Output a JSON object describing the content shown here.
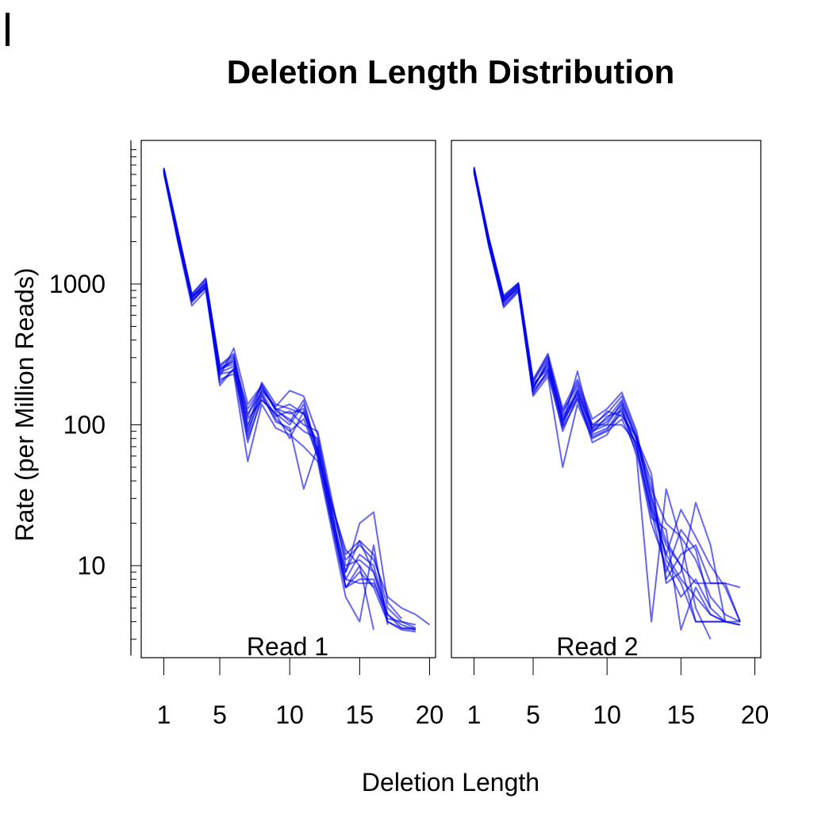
{
  "chart_data": {
    "type": "line",
    "title": "Deletion Length Distribution",
    "xlabel": "Deletion Length",
    "ylabel": "Rate (per Million Reads)",
    "y_scale": "log",
    "ylim": [
      2.3,
      9000
    ],
    "xlim": [
      0,
      20.3
    ],
    "y_ticks": [
      10,
      100,
      1000
    ],
    "y_tick_labels": [
      "10",
      "100",
      "1000"
    ],
    "x_ticks": [
      1,
      5,
      10,
      15,
      20
    ],
    "x_tick_labels": [
      "1",
      "5",
      "10",
      "15",
      "20"
    ],
    "line_color": "#0000ee",
    "grid": false,
    "legend": "none",
    "panels": [
      {
        "label": "Read 1",
        "series": [
          {
            "x": [
              1,
              2,
              3,
              4,
              5,
              6,
              7,
              8,
              9,
              10,
              11,
              12,
              13,
              14,
              15,
              16,
              17,
              18,
              19
            ],
            "values": [
              6500,
              2200,
              800,
              1000,
              240,
              290,
              85,
              180,
              130,
              120,
              130,
              70,
              22,
              8,
              12,
              10,
              4.5,
              3.8,
              3.5
            ]
          },
          {
            "x": [
              1,
              2,
              3,
              4,
              5,
              6,
              7,
              8,
              9,
              10,
              11,
              12,
              13,
              14,
              15,
              16,
              17,
              18,
              19
            ],
            "values": [
              6300,
              2100,
              760,
              950,
              230,
              240,
              110,
              150,
              120,
              100,
              140,
              65,
              25,
              7,
              9,
              7,
              4,
              3.6,
              3.5
            ]
          },
          {
            "x": [
              1,
              2,
              3,
              4,
              5,
              6,
              7,
              8,
              9,
              10,
              11,
              12,
              13,
              14,
              15,
              16,
              17,
              18,
              19
            ],
            "values": [
              6700,
              2400,
              850,
              1100,
              260,
              310,
              95,
              200,
              140,
              130,
              120,
              75,
              28,
              12,
              15,
              12,
              5,
              4,
              3.8
            ]
          },
          {
            "x": [
              1,
              2,
              3,
              4,
              5,
              6,
              7,
              8,
              9,
              10,
              11,
              12,
              13,
              14,
              15,
              16,
              17,
              18,
              19
            ],
            "values": [
              6100,
              2000,
              700,
              900,
              200,
              250,
              75,
              160,
              110,
              90,
              110,
              60,
              20,
              7,
              8,
              8,
              4,
              3.5,
              3.4
            ]
          },
          {
            "x": [
              1,
              2,
              3,
              4,
              5,
              6,
              7,
              8,
              9,
              10,
              11,
              12,
              13,
              14,
              15,
              16,
              17,
              18,
              19
            ],
            "values": [
              6400,
              2300,
              830,
              1020,
              250,
              270,
              120,
              170,
              115,
              125,
              100,
              90,
              30,
              10,
              11,
              9,
              4.2,
              4,
              3.6
            ]
          },
          {
            "x": [
              1,
              2,
              3,
              4,
              5,
              6,
              7,
              8,
              9,
              10,
              11,
              12,
              13,
              14,
              15,
              16,
              17,
              18
            ],
            "values": [
              6600,
              2250,
              780,
              980,
              220,
              350,
              140,
              190,
              125,
              110,
              90,
              80,
              24,
              9,
              20,
              24,
              5.5,
              4.2
            ]
          },
          {
            "x": [
              1,
              2,
              3,
              4,
              5,
              6,
              7,
              8,
              9,
              10,
              11,
              12,
              13,
              14,
              15,
              16,
              17
            ],
            "values": [
              6200,
              2150,
              820,
              930,
              210,
              230,
              55,
              140,
              95,
              85,
              70,
              55,
              18,
              6,
              4,
              14,
              3.8
            ]
          },
          {
            "x": [
              1,
              2,
              3,
              4,
              5,
              6,
              7,
              8,
              9,
              10,
              11,
              12,
              13,
              14,
              15,
              16,
              17,
              18,
              19,
              20
            ],
            "values": [
              6550,
              2350,
              790,
              1050,
              245,
              300,
              100,
              175,
              135,
              175,
              160,
              85,
              26,
              11,
              14,
              11,
              6,
              5,
              4.5,
              3.8
            ]
          },
          {
            "x": [
              1,
              2,
              3,
              4,
              5,
              6,
              7,
              8,
              9,
              10,
              11,
              12,
              13,
              14,
              15,
              16,
              17,
              18,
              19
            ],
            "values": [
              6450,
              2050,
              740,
              960,
              235,
              260,
              90,
              165,
              105,
              95,
              35,
              70,
              21,
              8,
              7.5,
              7.5,
              4.5,
              3.6,
              3.6
            ]
          },
          {
            "x": [
              1,
              2,
              3,
              4,
              5,
              6,
              7,
              8,
              9,
              10,
              11,
              12,
              13,
              14,
              15,
              16,
              17
            ],
            "values": [
              6350,
              2280,
              810,
              990,
              255,
              280,
              130,
              185,
              128,
              140,
              120,
              65,
              23,
              9,
              15,
              9,
              4.5
            ]
          },
          {
            "x": [
              1,
              2,
              3,
              4,
              5,
              6,
              7,
              8,
              9,
              10,
              11,
              12,
              13,
              14,
              15,
              16
            ],
            "values": [
              6250,
              2120,
              760,
              940,
              190,
              250,
              80,
              150,
              120,
              80,
              125,
              58,
              20,
              7,
              10,
              3.5
            ]
          },
          {
            "x": [
              1,
              2,
              3,
              4,
              5,
              6,
              7,
              8,
              9,
              10,
              11,
              12,
              13,
              14,
              15,
              16
            ],
            "values": [
              6600,
              2320,
              840,
              1080,
              265,
              320,
              115,
              195,
              130,
              105,
              150,
              62,
              27,
              13,
              10,
              7
            ]
          }
        ]
      },
      {
        "label": "Read 2",
        "series": [
          {
            "x": [
              1,
              2,
              3,
              4,
              5,
              6,
              7,
              8,
              9,
              10,
              11,
              12,
              13,
              14,
              15,
              16,
              17,
              18,
              19
            ],
            "values": [
              6600,
              2000,
              750,
              950,
              180,
              280,
              110,
              180,
              95,
              110,
              150,
              80,
              30,
              15,
              10,
              7.5,
              7.5,
              7.5,
              4
            ]
          },
          {
            "x": [
              1,
              2,
              3,
              4,
              5,
              6,
              7,
              8,
              9,
              10,
              11,
              12,
              13,
              14,
              15,
              16,
              17,
              18,
              19
            ],
            "values": [
              6400,
              1900,
              720,
              900,
              170,
              230,
              95,
              150,
              85,
              95,
              120,
              70,
              25,
              12,
              8,
              6,
              4.5,
              4,
              3.8
            ]
          },
          {
            "x": [
              1,
              2,
              3,
              4,
              5,
              6,
              7,
              8,
              9,
              10,
              11,
              12,
              13,
              14,
              15,
              16,
              17,
              18,
              19
            ],
            "values": [
              6800,
              2100,
              800,
              1000,
              200,
              300,
              120,
              200,
              100,
              120,
              160,
              85,
              35,
              20,
              16,
              11,
              6,
              4.5,
              4
            ]
          },
          {
            "x": [
              1,
              2,
              3,
              4,
              5,
              6,
              7,
              8,
              9,
              10,
              11,
              12,
              13,
              14,
              15,
              16,
              17,
              18
            ],
            "values": [
              6200,
              1850,
              680,
              880,
              160,
              220,
              50,
              140,
              80,
              90,
              110,
              65,
              20,
              10,
              6,
              8,
              5,
              4
            ]
          },
          {
            "x": [
              1,
              2,
              3,
              4,
              5,
              6,
              7,
              8,
              9,
              10,
              11,
              12,
              13,
              14,
              15,
              16,
              17,
              18,
              19
            ],
            "values": [
              6500,
              2050,
              780,
              970,
              190,
              260,
              100,
              240,
              90,
              100,
              100,
              75,
              40,
              8,
              12,
              14,
              7.5,
              7.5,
              7
            ]
          },
          {
            "x": [
              1,
              2,
              3,
              4,
              5,
              6,
              7,
              8,
              9,
              10,
              11,
              12,
              13,
              14,
              15,
              16,
              17,
              18,
              19
            ],
            "values": [
              6700,
              2150,
              830,
              1020,
              210,
              320,
              130,
              210,
              110,
              130,
              170,
              90,
              28,
              12,
              25,
              16,
              10,
              7,
              4
            ]
          },
          {
            "x": [
              1,
              2,
              3,
              4,
              5,
              6,
              7,
              8,
              9,
              10,
              11,
              12,
              13,
              14,
              15,
              16,
              17
            ],
            "values": [
              6300,
              1950,
              760,
              920,
              175,
              240,
              90,
              160,
              75,
              85,
              130,
              60,
              4,
              35,
              15,
              5,
              3
            ]
          },
          {
            "x": [
              1,
              2,
              3,
              4,
              5,
              6,
              7,
              8,
              9,
              10,
              11,
              12,
              13,
              14,
              15,
              16,
              17,
              18
            ],
            "values": [
              6600,
              2000,
              740,
              960,
              185,
              270,
              105,
              170,
              92,
              105,
              140,
              80,
              45,
              7.5,
              9,
              28,
              14,
              4
            ]
          },
          {
            "x": [
              1,
              2,
              3,
              4,
              5,
              6,
              7,
              8,
              9,
              10,
              11,
              12,
              13,
              14,
              15,
              16,
              17,
              18,
              19
            ],
            "values": [
              6450,
              1980,
              770,
              940,
              195,
              250,
              115,
              165,
              88,
              115,
              125,
              72,
              22,
              18,
              3.5,
              7,
              4.5,
              4,
              3.8
            ]
          },
          {
            "x": [
              1,
              2,
              3,
              4,
              5,
              6,
              7,
              8,
              9,
              10,
              11,
              12,
              13,
              14,
              15,
              16,
              17,
              18
            ],
            "values": [
              6350,
              2080,
              790,
              990,
              180,
              290,
              125,
              190,
              100,
              100,
              145,
              78,
              32,
              11,
              7.5,
              4,
              4,
              4
            ]
          },
          {
            "x": [
              1,
              2,
              3,
              4,
              5,
              6,
              7,
              8,
              9,
              10,
              11,
              12,
              13,
              14,
              15,
              16,
              17,
              18,
              19
            ],
            "values": [
              6550,
              2120,
              810,
              1010,
              205,
              310,
              98,
              175,
              95,
              125,
              115,
              82,
              26,
              14,
              10,
              4,
              4,
              4,
              4
            ]
          },
          {
            "x": [
              1,
              2,
              3,
              4,
              5,
              6,
              7,
              8,
              9,
              10,
              11,
              12,
              13,
              14,
              15,
              16,
              17
            ],
            "values": [
              6250,
              1920,
              700,
              900,
              165,
              245,
              108,
              155,
              82,
              92,
              135,
              68,
              24,
              9,
              18,
              13,
              5
            ]
          }
        ]
      }
    ]
  }
}
